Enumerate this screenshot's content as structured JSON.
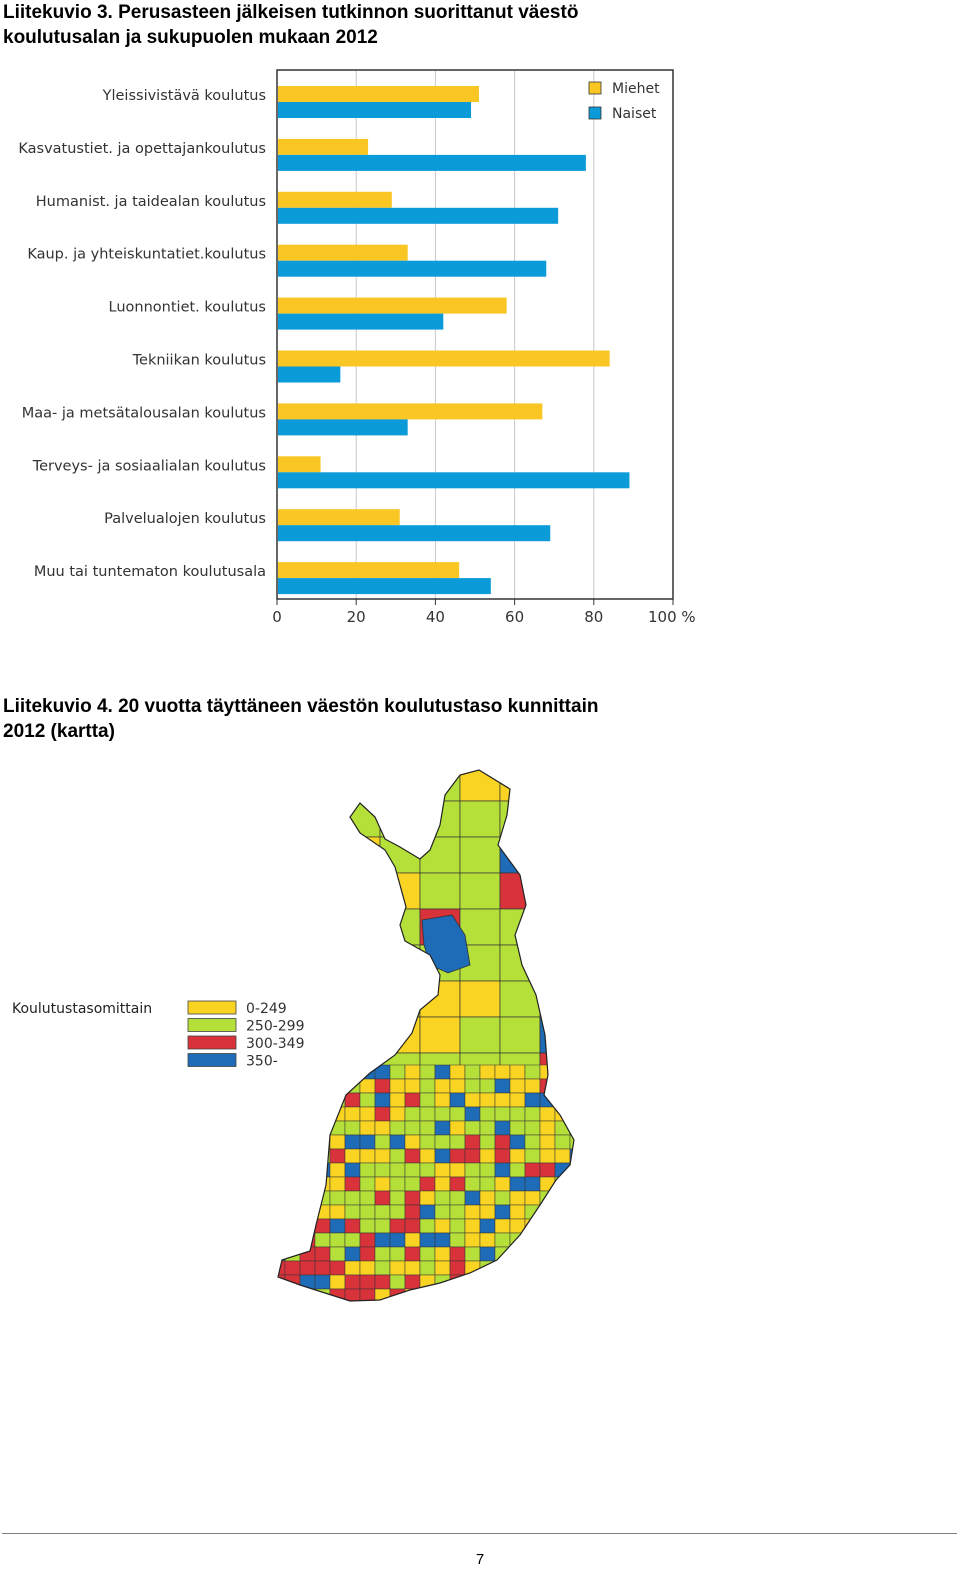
{
  "figure3": {
    "caption_line1": "Liitekuvio 3. Perusasteen jälkeisen tutkinnon suorittanut väestö",
    "caption_line2": "koulutusalan ja sukupuolen mukaan 2012"
  },
  "chart_data": {
    "type": "bar",
    "orientation": "horizontal",
    "categories": [
      "Yleissivistävä koulutus",
      "Kasvatustiet. ja opettajankoulutus",
      "Humanist. ja taidealan koulutus",
      "Kaup. ja yhteiskuntatiet.koulutus",
      "Luonnontiet. koulutus",
      "Tekniikan koulutus",
      "Maa- ja metsätalousalan koulutus",
      "Terveys- ja sosiaalialan koulutus",
      "Palvelualojen koulutus",
      "Muu tai tuntematon koulutusala"
    ],
    "series": [
      {
        "name": "Miehet",
        "color": "#F9C623",
        "values": [
          51,
          23,
          29,
          33,
          58,
          84,
          67,
          11,
          31,
          46
        ]
      },
      {
        "name": "Naiset",
        "color": "#0B9BD8",
        "values": [
          49,
          78,
          71,
          68,
          42,
          16,
          33,
          89,
          69,
          54
        ]
      }
    ],
    "xlim": [
      0,
      100
    ],
    "xticks": [
      0,
      20,
      40,
      60,
      80,
      100
    ],
    "xtick_labels": [
      "0",
      "20",
      "40",
      "60",
      "80",
      "100 %"
    ],
    "grid": true,
    "legend": "top-right"
  },
  "figure4": {
    "caption_line1": "Liitekuvio 4. 20 vuotta täyttäneen väestön koulutustaso kunnittain",
    "caption_line2": "2012 (kartta)",
    "legend_title": "Koulutustasomittain",
    "legend": [
      {
        "label": "0-249",
        "color": "#F9D423"
      },
      {
        "label": "250-299",
        "color": "#B5E03A"
      },
      {
        "label": "300-349",
        "color": "#D8333A"
      },
      {
        "label": "350-",
        "color": "#1E6BB8"
      }
    ]
  },
  "page_number": "7"
}
